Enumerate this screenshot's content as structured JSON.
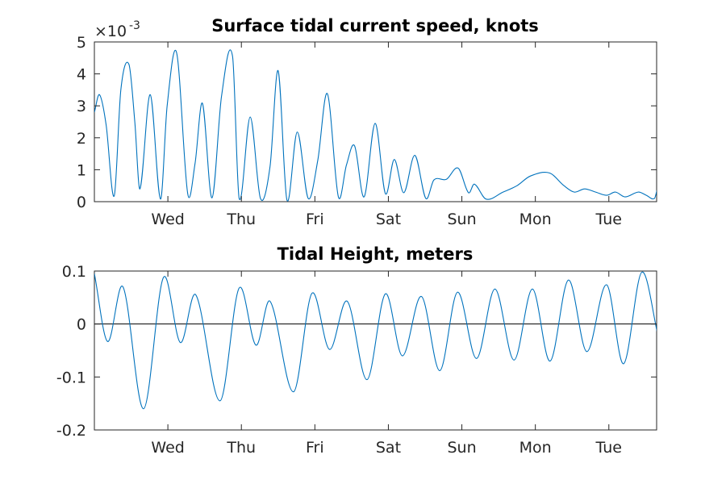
{
  "chart_data": [
    {
      "type": "line",
      "title": "Surface tidal current speed, knots",
      "xlabel": "",
      "ylabel": "",
      "y_exponent_label": "×10",
      "y_exponent_power": "-3",
      "xlim": [
        0,
        7.65
      ],
      "ylim": [
        0,
        0.005
      ],
      "x_ticks": [
        {
          "x": 1,
          "label": "Wed"
        },
        {
          "x": 2,
          "label": "Thu"
        },
        {
          "x": 3,
          "label": "Fri"
        },
        {
          "x": 4,
          "label": "Sat"
        },
        {
          "x": 5,
          "label": "Sun"
        },
        {
          "x": 6,
          "label": "Mon"
        },
        {
          "x": 7,
          "label": "Tue"
        }
      ],
      "y_ticks": [
        {
          "y": 0,
          "label": "0"
        },
        {
          "y": 0.001,
          "label": "1"
        },
        {
          "y": 0.002,
          "label": "2"
        },
        {
          "y": 0.003,
          "label": "3"
        },
        {
          "y": 0.004,
          "label": "4"
        },
        {
          "y": 0.005,
          "label": "5"
        }
      ],
      "grid": false,
      "series": [
        {
          "color": "#0072bd",
          "x": [
            0,
            0.07,
            0.16,
            0.27,
            0.36,
            0.47,
            0.55,
            0.62,
            0.76,
            0.9,
            0.99,
            1.12,
            1.27,
            1.37,
            1.47,
            1.6,
            1.73,
            1.88,
            1.97,
            2.12,
            2.26,
            2.39,
            2.5,
            2.62,
            2.76,
            2.91,
            3.04,
            3.17,
            3.32,
            3.43,
            3.54,
            3.67,
            3.82,
            3.96,
            4.08,
            4.21,
            4.36,
            4.51,
            4.62,
            4.79,
            4.95,
            5.09,
            5.17,
            5.33,
            5.56,
            5.75,
            5.93,
            6.19,
            6.39,
            6.53,
            6.67,
            6.82,
            6.97,
            7.09,
            7.22,
            7.4,
            7.51,
            7.62,
            7.67,
            7.73,
            7.75
          ],
          "y": [
            0.0028,
            0.00335,
            0.0024,
            0.00018,
            0.0035,
            0.0043,
            0.0025,
            0.0004,
            0.00335,
            8e-05,
            0.003,
            0.00465,
            0.00025,
            0.0012,
            0.00308,
            0.00012,
            0.0033,
            0.00455,
            0.0001,
            0.00265,
            0.0001,
            0.0011,
            0.0041,
            5e-05,
            0.00218,
            0.0001,
            0.0013,
            0.00338,
            0.00015,
            0.00115,
            0.00175,
            0.00015,
            0.00245,
            0.00025,
            0.00132,
            0.00028,
            0.00145,
            0.0001,
            0.00068,
            0.0007,
            0.00105,
            0.00028,
            0.00055,
            8e-05,
            0.0003,
            0.0005,
            0.0008,
            0.0009,
            0.0005,
            0.0003,
            0.0004,
            0.0003,
            0.0002,
            0.0003,
            0.00015,
            0.0003,
            0.0002,
            0.0001,
            0.00045,
            0.0003,
            0.00045
          ]
        }
      ]
    },
    {
      "type": "line",
      "title": "Tidal Height, meters",
      "xlabel": "",
      "ylabel": "",
      "xlim": [
        0,
        7.65
      ],
      "ylim": [
        -0.2,
        0.1
      ],
      "x_ticks": [
        {
          "x": 1,
          "label": "Wed"
        },
        {
          "x": 2,
          "label": "Thu"
        },
        {
          "x": 3,
          "label": "Fri"
        },
        {
          "x": 4,
          "label": "Sat"
        },
        {
          "x": 5,
          "label": "Sun"
        },
        {
          "x": 6,
          "label": "Mon"
        },
        {
          "x": 7,
          "label": "Tue"
        }
      ],
      "y_ticks": [
        {
          "y": -0.2,
          "label": "-0.2"
        },
        {
          "y": -0.1,
          "label": "-0.1"
        },
        {
          "y": 0,
          "label": "0"
        },
        {
          "y": 0.1,
          "label": "0.1"
        }
      ],
      "grid": false,
      "zero_line": true,
      "series": [
        {
          "color": "#0072bd",
          "x": [
            0,
            0.18,
            0.39,
            0.67,
            0.94,
            1.17,
            1.38,
            1.71,
            1.97,
            2.2,
            2.39,
            2.71,
            2.96,
            3.2,
            3.44,
            3.71,
            3.96,
            4.19,
            4.45,
            4.7,
            4.94,
            5.2,
            5.45,
            5.71,
            5.96,
            6.2,
            6.45,
            6.7,
            6.97,
            7.2,
            7.45,
            7.7,
            7.75
          ],
          "y": [
            0.095,
            -0.033,
            0.07,
            -0.16,
            0.088,
            -0.035,
            0.055,
            -0.145,
            0.068,
            -0.04,
            0.043,
            -0.128,
            0.058,
            -0.048,
            0.043,
            -0.105,
            0.057,
            -0.06,
            0.052,
            -0.088,
            0.06,
            -0.065,
            0.066,
            -0.068,
            0.066,
            -0.07,
            0.083,
            -0.052,
            0.074,
            -0.075,
            0.098,
            -0.04,
            -0.035
          ]
        }
      ]
    }
  ]
}
